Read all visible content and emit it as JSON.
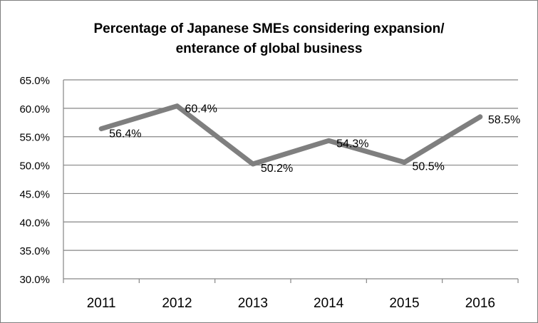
{
  "chart_data": {
    "type": "line",
    "title_lines": [
      "Percentage of Japanese SMEs considering expansion/",
      "enterance of global business"
    ],
    "categories": [
      "2011",
      "2012",
      "2013",
      "2014",
      "2015",
      "2016"
    ],
    "series": [
      {
        "name": "Percentage",
        "values": [
          56.4,
          60.4,
          50.2,
          54.3,
          50.5,
          58.5
        ],
        "labels": [
          "56.4%",
          "60.4%",
          "50.2%",
          "54.3%",
          "50.5%",
          "58.5%"
        ]
      }
    ],
    "y_ticks": [
      "30.0%",
      "35.0%",
      "40.0%",
      "45.0%",
      "50.0%",
      "55.0%",
      "60.0%",
      "65.0%"
    ],
    "ylim": [
      30,
      65
    ],
    "xlabel": "",
    "ylabel": "",
    "grid": true,
    "legend": "none",
    "line_color": "#7f7f7f",
    "grid_color": "#868686"
  }
}
